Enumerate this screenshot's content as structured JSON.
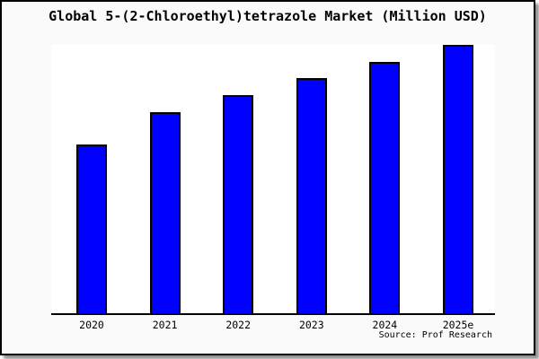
{
  "title": "Global 5-(2-Chloroethyl)tetrazole Market (Million USD)",
  "source_note": "Source: Prof Research",
  "colors": {
    "bar_fill": "#0000ff",
    "bar_border": "#000000",
    "frame_bg": "#fafafa",
    "plot_bg": "#ffffff",
    "frame_border": "#000000"
  },
  "chart_data": {
    "type": "bar",
    "title": "Global 5-(2-Chloroethyl)tetrazole Market (Million USD)",
    "categories": [
      "2020",
      "2021",
      "2022",
      "2023",
      "2024",
      "2025e"
    ],
    "values": [
      62.6,
      74.8,
      81.1,
      87.4,
      93.3,
      99.6
    ],
    "value_note": "No y-axis scale shown in image; values are relative bar heights (% of tallest possible plot height), 2025e is the maximum",
    "xlabel": "",
    "ylabel": "",
    "ylim": [
      0,
      100
    ],
    "grid": false,
    "legend": false,
    "bar_color": "#0000ff",
    "annotations": [
      "Source: Prof Research"
    ]
  }
}
